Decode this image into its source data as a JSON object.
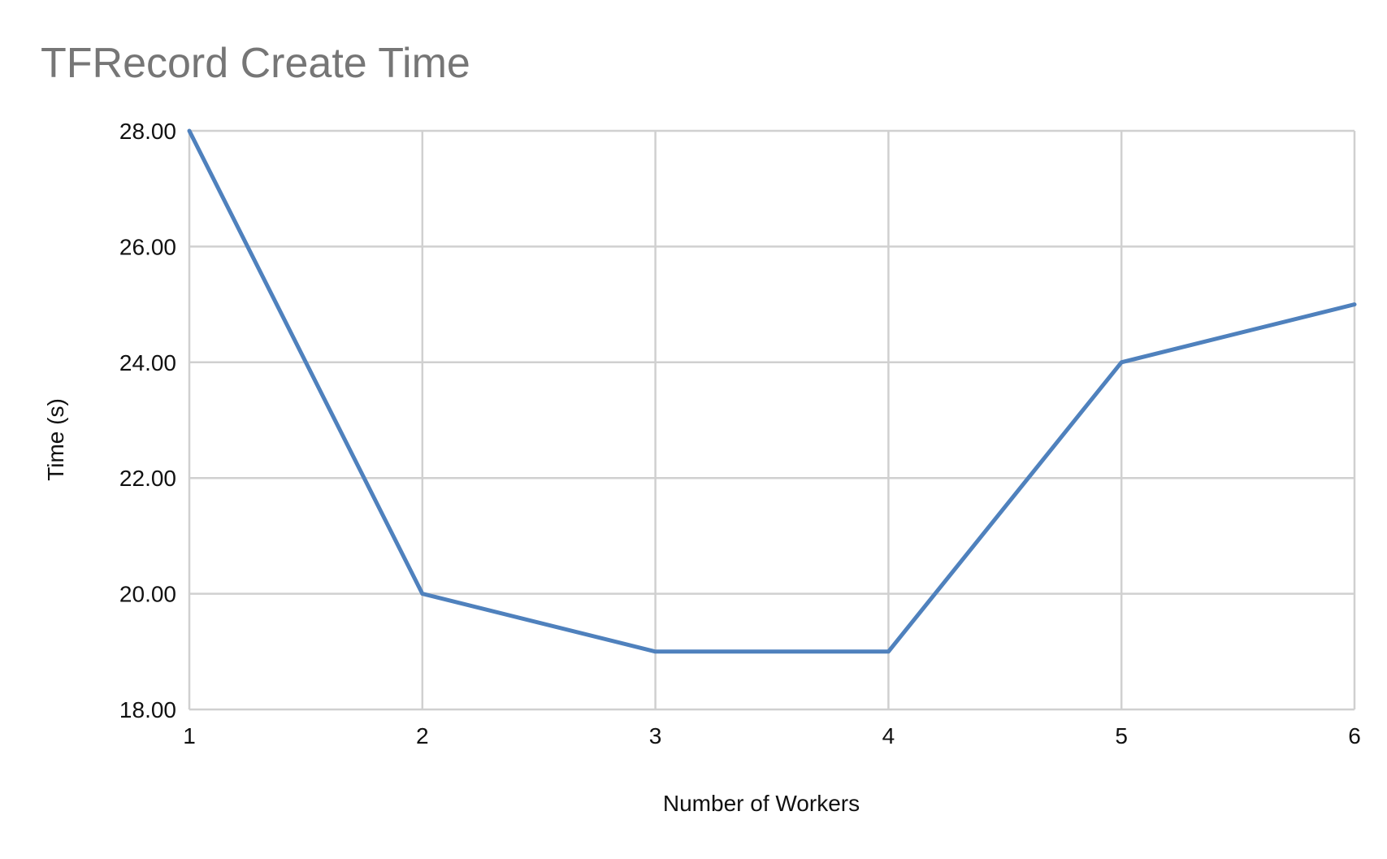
{
  "chart_data": {
    "type": "line",
    "title": "TFRecord Create Time",
    "xlabel": "Number of Workers",
    "ylabel": "Time (s)",
    "x": [
      1,
      2,
      3,
      4,
      5,
      6
    ],
    "x_tick_labels": [
      "1",
      "2",
      "3",
      "4",
      "5",
      "6"
    ],
    "ylim": [
      18,
      28
    ],
    "y_ticks": [
      18,
      20,
      22,
      24,
      26,
      28
    ],
    "y_tick_labels": [
      "18.00",
      "20.00",
      "22.00",
      "24.00",
      "26.00",
      "28.00"
    ],
    "series": [
      {
        "values": [
          28,
          20,
          19,
          19,
          24,
          25
        ],
        "color": "#4f81bd"
      }
    ],
    "grid": true,
    "legend": "none"
  }
}
